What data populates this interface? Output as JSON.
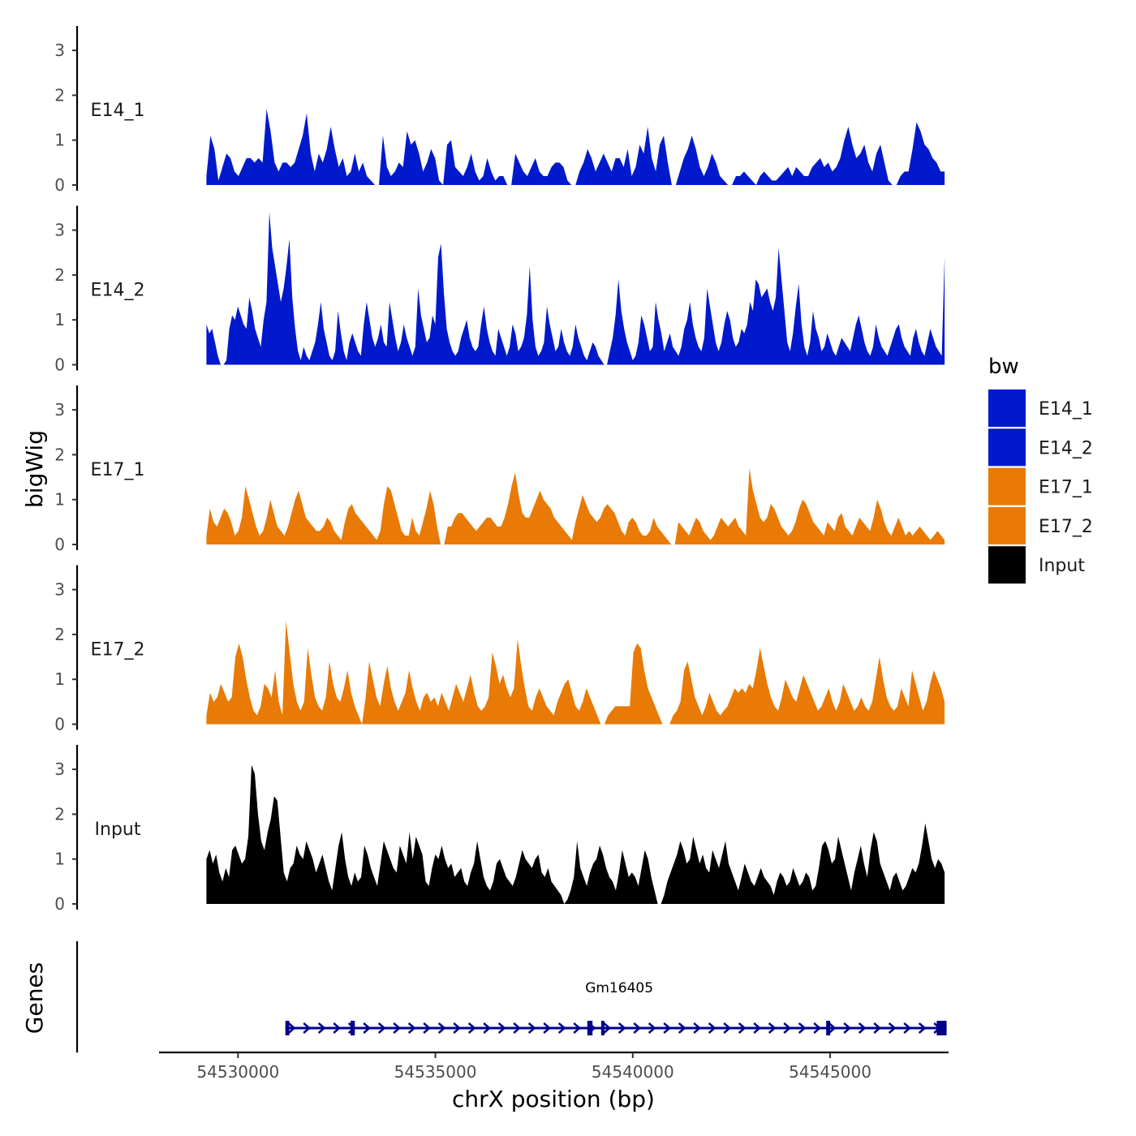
{
  "chart_data": {
    "type": "area",
    "title": "",
    "xlabel": "chrX position (bp)",
    "ylabel": "bigWig",
    "genes_label": "Genes",
    "chromosome": "chrX",
    "xlim": [
      54528000,
      54548000
    ],
    "x_ticks": [
      54530000,
      54535000,
      54540000,
      54545000
    ],
    "x_tick_labels": [
      "54530000",
      "54535000",
      "54540000",
      "54545000"
    ],
    "ylim": [
      0,
      3.5
    ],
    "y_ticks": [
      0,
      1,
      2,
      3
    ],
    "y_tick_labels": [
      "0",
      "1",
      "2",
      "3"
    ],
    "track_start": 54529200,
    "track_end": 54547900,
    "legend": {
      "title": "bw",
      "entries": [
        {
          "label": "E14_1",
          "color": "#0019cc"
        },
        {
          "label": "E14_2",
          "color": "#0019cc"
        },
        {
          "label": "E17_1",
          "color": "#e87a05"
        },
        {
          "label": "E17_2",
          "color": "#e87a05"
        },
        {
          "label": "Input",
          "color": "#000000"
        }
      ]
    },
    "series": [
      {
        "name": "E14_1",
        "color": "#0019cc",
        "values": [
          0.2,
          1.1,
          0.8,
          0.1,
          0.4,
          0.7,
          0.6,
          0.3,
          0.2,
          0.4,
          0.6,
          0.6,
          0.5,
          0.6,
          0.5,
          1.7,
          1.2,
          0.5,
          0.3,
          0.5,
          0.5,
          0.4,
          0.5,
          0.8,
          1.1,
          1.6,
          0.7,
          0.3,
          0.7,
          0.5,
          0.8,
          1.3,
          0.8,
          0.4,
          0.6,
          0.2,
          0.3,
          0.7,
          0.3,
          0.5,
          0.2,
          0.1,
          0.0,
          0.0,
          1.1,
          0.4,
          0.2,
          0.3,
          0.5,
          0.4,
          1.2,
          0.9,
          1.0,
          0.7,
          0.3,
          0.5,
          0.8,
          0.6,
          0.1,
          0.0,
          0.9,
          1.0,
          0.4,
          0.3,
          0.2,
          0.4,
          0.7,
          0.3,
          0.1,
          0.2,
          0.6,
          0.3,
          0.1,
          0.2,
          0.2,
          0.0,
          0.0,
          0.7,
          0.5,
          0.3,
          0.2,
          0.4,
          0.6,
          0.3,
          0.2,
          0.2,
          0.4,
          0.5,
          0.5,
          0.4,
          0.1,
          0.0,
          0.0,
          0.3,
          0.5,
          0.8,
          0.6,
          0.3,
          0.5,
          0.7,
          0.5,
          0.3,
          0.6,
          0.6,
          0.4,
          0.8,
          0.2,
          0.4,
          0.9,
          0.7,
          1.3,
          0.6,
          0.3,
          0.9,
          1.1,
          0.5,
          0.0,
          0.0,
          0.3,
          0.6,
          0.8,
          1.1,
          0.8,
          0.4,
          0.2,
          0.4,
          0.7,
          0.5,
          0.2,
          0.1,
          0.0,
          0.0,
          0.2,
          0.2,
          0.3,
          0.2,
          0.1,
          0.0,
          0.2,
          0.3,
          0.2,
          0.1,
          0.1,
          0.2,
          0.3,
          0.4,
          0.2,
          0.4,
          0.3,
          0.2,
          0.2,
          0.4,
          0.5,
          0.6,
          0.4,
          0.5,
          0.3,
          0.4,
          0.6,
          1.0,
          1.3,
          0.9,
          0.6,
          0.7,
          0.9,
          0.5,
          0.3,
          0.7,
          0.9,
          0.5,
          0.1,
          0.0,
          0.0,
          0.2,
          0.3,
          0.3,
          0.8,
          1.4,
          1.2,
          0.9,
          0.8,
          0.6,
          0.5,
          0.3,
          0.3
        ]
      },
      {
        "name": "E14_2",
        "color": "#0019cc",
        "values": [
          0.9,
          0.7,
          0.8,
          0.5,
          0.2,
          0.0,
          0.0,
          0.1,
          0.8,
          1.1,
          1.0,
          1.3,
          1.1,
          0.9,
          0.8,
          1.5,
          1.2,
          0.8,
          0.6,
          0.4,
          1.0,
          1.4,
          3.4,
          2.6,
          2.2,
          1.8,
          1.4,
          1.7,
          2.2,
          2.8,
          1.5,
          0.8,
          0.3,
          0.1,
          0.4,
          0.2,
          0.1,
          0.3,
          0.5,
          0.9,
          1.4,
          0.8,
          0.5,
          0.2,
          0.1,
          0.3,
          1.2,
          0.7,
          0.3,
          0.1,
          0.5,
          0.7,
          0.5,
          0.3,
          0.2,
          0.9,
          1.4,
          1.0,
          0.6,
          0.4,
          0.6,
          0.9,
          0.5,
          0.4,
          1.4,
          1.0,
          0.6,
          0.3,
          0.5,
          0.9,
          0.6,
          0.4,
          0.2,
          0.4,
          1.7,
          1.1,
          0.8,
          0.5,
          0.6,
          1.1,
          0.9,
          2.4,
          2.7,
          1.6,
          0.8,
          0.5,
          0.3,
          0.2,
          0.3,
          0.6,
          0.8,
          1.0,
          0.6,
          0.4,
          0.3,
          0.4,
          0.9,
          1.3,
          0.8,
          0.5,
          0.3,
          0.2,
          0.8,
          0.6,
          0.4,
          0.2,
          0.4,
          0.9,
          0.7,
          0.3,
          0.4,
          0.6,
          1.1,
          2.2,
          1.0,
          0.4,
          0.2,
          0.3,
          0.5,
          1.3,
          0.9,
          0.6,
          0.3,
          0.4,
          0.8,
          0.5,
          0.3,
          0.2,
          0.4,
          0.9,
          0.6,
          0.4,
          0.2,
          0.1,
          0.3,
          0.5,
          0.4,
          0.2,
          0.1,
          0.0,
          0.0,
          0.3,
          0.6,
          1.1,
          1.9,
          1.2,
          0.8,
          0.5,
          0.3,
          0.1,
          0.2,
          0.5,
          1.1,
          0.9,
          0.6,
          0.3,
          0.4,
          1.4,
          1.0,
          0.7,
          0.3,
          0.5,
          0.7,
          0.4,
          0.3,
          0.2,
          0.4,
          0.8,
          1.0,
          1.4,
          0.9,
          0.6,
          0.4,
          0.3,
          0.6,
          1.7,
          1.3,
          0.9,
          0.5,
          0.3,
          0.5,
          0.9,
          1.2,
          1.0,
          0.6,
          0.4,
          0.5,
          0.8,
          0.7,
          0.9,
          1.4,
          1.2,
          1.9,
          1.8,
          1.5,
          1.6,
          1.7,
          1.4,
          1.2,
          1.5,
          2.6,
          1.9,
          1.2,
          0.5,
          0.3,
          0.7,
          1.3,
          1.8,
          0.9,
          0.4,
          0.2,
          0.5,
          1.2,
          0.8,
          0.6,
          0.3,
          0.4,
          0.7,
          0.5,
          0.3,
          0.2,
          0.4,
          0.6,
          0.5,
          0.4,
          0.3,
          0.6,
          0.9,
          1.1,
          0.8,
          0.5,
          0.3,
          0.2,
          0.4,
          0.9,
          0.6,
          0.4,
          0.3,
          0.2,
          0.4,
          0.6,
          0.8,
          0.9,
          0.6,
          0.4,
          0.3,
          0.2,
          0.6,
          0.8,
          0.5,
          0.3,
          0.2,
          0.5,
          0.8,
          0.6,
          0.4,
          0.3,
          0.2,
          2.4
        ]
      },
      {
        "name": "E17_1",
        "color": "#e87a05",
        "values": [
          0.2,
          0.8,
          0.5,
          0.4,
          0.6,
          0.8,
          0.7,
          0.5,
          0.2,
          0.3,
          0.6,
          1.3,
          1.0,
          0.7,
          0.4,
          0.2,
          0.3,
          0.6,
          1.0,
          0.7,
          0.4,
          0.3,
          0.2,
          0.4,
          0.7,
          1.0,
          1.2,
          0.9,
          0.6,
          0.5,
          0.4,
          0.3,
          0.3,
          0.4,
          0.6,
          0.5,
          0.3,
          0.2,
          0.1,
          0.5,
          0.8,
          0.9,
          0.7,
          0.6,
          0.5,
          0.4,
          0.3,
          0.2,
          0.1,
          0.3,
          0.9,
          1.3,
          1.2,
          0.9,
          0.6,
          0.3,
          0.2,
          0.2,
          0.6,
          0.3,
          0.2,
          0.5,
          0.8,
          1.2,
          0.9,
          0.4,
          0.0,
          0.0,
          0.4,
          0.4,
          0.6,
          0.7,
          0.7,
          0.6,
          0.5,
          0.4,
          0.3,
          0.4,
          0.5,
          0.6,
          0.6,
          0.5,
          0.4,
          0.4,
          0.6,
          0.9,
          1.3,
          1.6,
          1.1,
          0.7,
          0.6,
          0.6,
          0.8,
          1.0,
          1.2,
          1.0,
          0.9,
          0.8,
          0.6,
          0.5,
          0.4,
          0.3,
          0.2,
          0.1,
          0.5,
          0.8,
          1.1,
          0.9,
          0.7,
          0.6,
          0.5,
          0.6,
          0.8,
          0.9,
          0.8,
          0.7,
          0.5,
          0.3,
          0.2,
          0.5,
          0.6,
          0.5,
          0.3,
          0.2,
          0.2,
          0.3,
          0.6,
          0.4,
          0.3,
          0.2,
          0.1,
          0.0,
          0.0,
          0.5,
          0.4,
          0.3,
          0.2,
          0.4,
          0.6,
          0.5,
          0.3,
          0.2,
          0.1,
          0.2,
          0.4,
          0.6,
          0.5,
          0.4,
          0.5,
          0.6,
          0.4,
          0.3,
          0.2,
          1.7,
          1.2,
          0.9,
          0.6,
          0.5,
          0.6,
          0.9,
          0.8,
          0.6,
          0.4,
          0.3,
          0.2,
          0.3,
          0.5,
          0.8,
          1.0,
          0.9,
          0.7,
          0.5,
          0.4,
          0.3,
          0.2,
          0.5,
          0.4,
          0.3,
          0.6,
          0.7,
          0.4,
          0.3,
          0.2,
          0.4,
          0.6,
          0.5,
          0.4,
          0.3,
          0.6,
          1.0,
          0.8,
          0.5,
          0.3,
          0.2,
          0.4,
          0.6,
          0.4,
          0.2,
          0.3,
          0.2,
          0.3,
          0.4,
          0.3,
          0.2,
          0.1,
          0.2,
          0.3,
          0.2,
          0.1
        ]
      },
      {
        "name": "E17_2",
        "color": "#e87a05",
        "values": [
          0.2,
          0.7,
          0.5,
          0.6,
          0.9,
          0.7,
          0.5,
          0.6,
          1.5,
          1.8,
          1.5,
          1.0,
          0.6,
          0.3,
          0.2,
          0.4,
          0.9,
          0.8,
          0.6,
          1.2,
          0.5,
          0.2,
          2.3,
          1.6,
          0.9,
          0.5,
          0.3,
          0.5,
          1.7,
          1.1,
          0.6,
          0.4,
          0.3,
          0.6,
          1.4,
          0.9,
          0.6,
          0.5,
          0.8,
          1.2,
          0.7,
          0.4,
          0.2,
          0.0,
          0.6,
          1.4,
          1.0,
          0.6,
          0.4,
          0.9,
          1.3,
          0.8,
          0.5,
          0.3,
          0.5,
          0.7,
          1.2,
          0.8,
          0.5,
          0.3,
          0.6,
          0.7,
          0.5,
          0.6,
          0.4,
          0.7,
          0.5,
          0.3,
          0.6,
          0.9,
          0.7,
          0.5,
          0.8,
          1.1,
          0.7,
          0.4,
          0.3,
          0.4,
          0.6,
          1.6,
          1.3,
          0.9,
          1.1,
          0.8,
          0.6,
          0.8,
          1.9,
          1.3,
          0.8,
          0.4,
          0.3,
          0.6,
          0.8,
          0.6,
          0.4,
          0.3,
          0.2,
          0.5,
          0.7,
          0.9,
          1.0,
          0.7,
          0.4,
          0.3,
          0.5,
          0.8,
          0.6,
          0.4,
          0.2,
          0.0,
          0.0,
          0.2,
          0.3,
          0.4,
          0.4,
          0.4,
          0.4,
          0.4,
          1.6,
          1.8,
          1.7,
          1.2,
          0.8,
          0.6,
          0.4,
          0.2,
          0.0,
          0.0,
          0.0,
          0.2,
          0.3,
          0.5,
          1.2,
          1.4,
          1.0,
          0.6,
          0.4,
          0.2,
          0.4,
          0.7,
          0.5,
          0.3,
          0.2,
          0.3,
          0.4,
          0.6,
          0.8,
          0.7,
          0.8,
          0.7,
          0.9,
          0.8,
          1.2,
          1.7,
          1.3,
          0.9,
          0.6,
          0.4,
          0.3,
          0.6,
          1.0,
          0.8,
          0.6,
          0.5,
          0.8,
          1.1,
          0.9,
          0.7,
          0.5,
          0.3,
          0.4,
          0.6,
          0.8,
          0.5,
          0.3,
          0.5,
          0.9,
          0.7,
          0.5,
          0.3,
          0.4,
          0.6,
          0.4,
          0.3,
          0.5,
          1.0,
          1.5,
          1.0,
          0.6,
          0.4,
          0.3,
          0.4,
          0.8,
          0.6,
          0.4,
          1.2,
          0.9,
          0.6,
          0.3,
          0.5,
          0.9,
          1.2,
          1.0,
          0.8,
          0.5
        ]
      },
      {
        "name": "Input",
        "color": "#000000",
        "values": [
          1.0,
          1.2,
          0.9,
          1.1,
          0.7,
          0.5,
          0.8,
          0.6,
          1.2,
          1.3,
          1.1,
          0.9,
          1.0,
          1.5,
          3.1,
          2.9,
          2.0,
          1.4,
          1.2,
          1.6,
          1.9,
          2.4,
          2.3,
          1.5,
          0.7,
          0.5,
          0.8,
          0.9,
          1.3,
          1.1,
          1.0,
          1.4,
          1.2,
          1.0,
          0.7,
          0.9,
          1.1,
          0.8,
          0.5,
          0.3,
          0.8,
          1.3,
          1.6,
          1.0,
          0.6,
          0.4,
          0.7,
          0.5,
          0.6,
          1.3,
          1.1,
          0.8,
          0.6,
          0.4,
          0.9,
          1.4,
          1.2,
          1.0,
          0.8,
          0.7,
          1.3,
          1.1,
          0.9,
          1.6,
          1.0,
          1.5,
          1.3,
          1.1,
          0.5,
          0.4,
          0.8,
          1.1,
          1.0,
          1.3,
          1.0,
          0.8,
          0.9,
          0.6,
          0.7,
          0.8,
          0.5,
          0.4,
          0.7,
          0.9,
          1.4,
          1.0,
          0.6,
          0.4,
          0.3,
          0.5,
          0.9,
          1.0,
          0.8,
          0.6,
          0.5,
          0.4,
          0.6,
          0.9,
          1.2,
          1.0,
          0.9,
          0.8,
          1.0,
          1.1,
          0.7,
          0.6,
          0.8,
          0.5,
          0.4,
          0.3,
          0.2,
          0.0,
          0.1,
          0.3,
          0.6,
          1.4,
          0.8,
          0.6,
          0.4,
          0.7,
          0.9,
          1.0,
          1.3,
          1.1,
          0.8,
          0.6,
          0.5,
          0.3,
          0.7,
          1.2,
          0.9,
          0.6,
          0.7,
          0.6,
          0.4,
          0.8,
          1.2,
          1.0,
          0.6,
          0.3,
          0.0,
          0.0,
          0.2,
          0.5,
          0.7,
          0.9,
          1.1,
          1.4,
          1.2,
          0.9,
          1.0,
          1.5,
          1.2,
          0.9,
          1.1,
          0.8,
          0.7,
          1.2,
          1.0,
          0.8,
          1.1,
          1.4,
          0.9,
          0.7,
          0.5,
          0.3,
          0.6,
          0.9,
          0.7,
          0.5,
          0.4,
          0.6,
          0.8,
          0.6,
          0.5,
          0.4,
          0.2,
          0.5,
          0.7,
          0.6,
          0.4,
          0.5,
          0.8,
          0.6,
          0.4,
          0.5,
          0.7,
          0.6,
          0.3,
          0.4,
          0.8,
          1.3,
          1.4,
          1.2,
          0.9,
          1.0,
          1.5,
          1.2,
          0.9,
          0.6,
          0.3,
          0.7,
          1.0,
          1.3,
          0.9,
          0.6,
          1.2,
          1.6,
          1.4,
          0.9,
          0.7,
          0.5,
          0.3,
          0.6,
          0.7,
          0.5,
          0.3,
          0.4,
          0.6,
          0.8,
          0.7,
          0.9,
          1.3,
          1.8,
          1.4,
          1.0,
          0.8,
          1.0,
          0.9,
          0.7
        ]
      }
    ],
    "gene": {
      "name": "Gm16405",
      "start": 54531200,
      "end": 54547950,
      "strand": "+",
      "color": "#00008b",
      "exons": [
        {
          "start": 54531200,
          "end": 54531300
        },
        {
          "start": 54532850,
          "end": 54532960
        },
        {
          "start": 54538850,
          "end": 54538980
        },
        {
          "start": 54539200,
          "end": 54539260
        },
        {
          "start": 54544900,
          "end": 54545000
        },
        {
          "start": 54547700,
          "end": 54547950
        }
      ]
    }
  }
}
